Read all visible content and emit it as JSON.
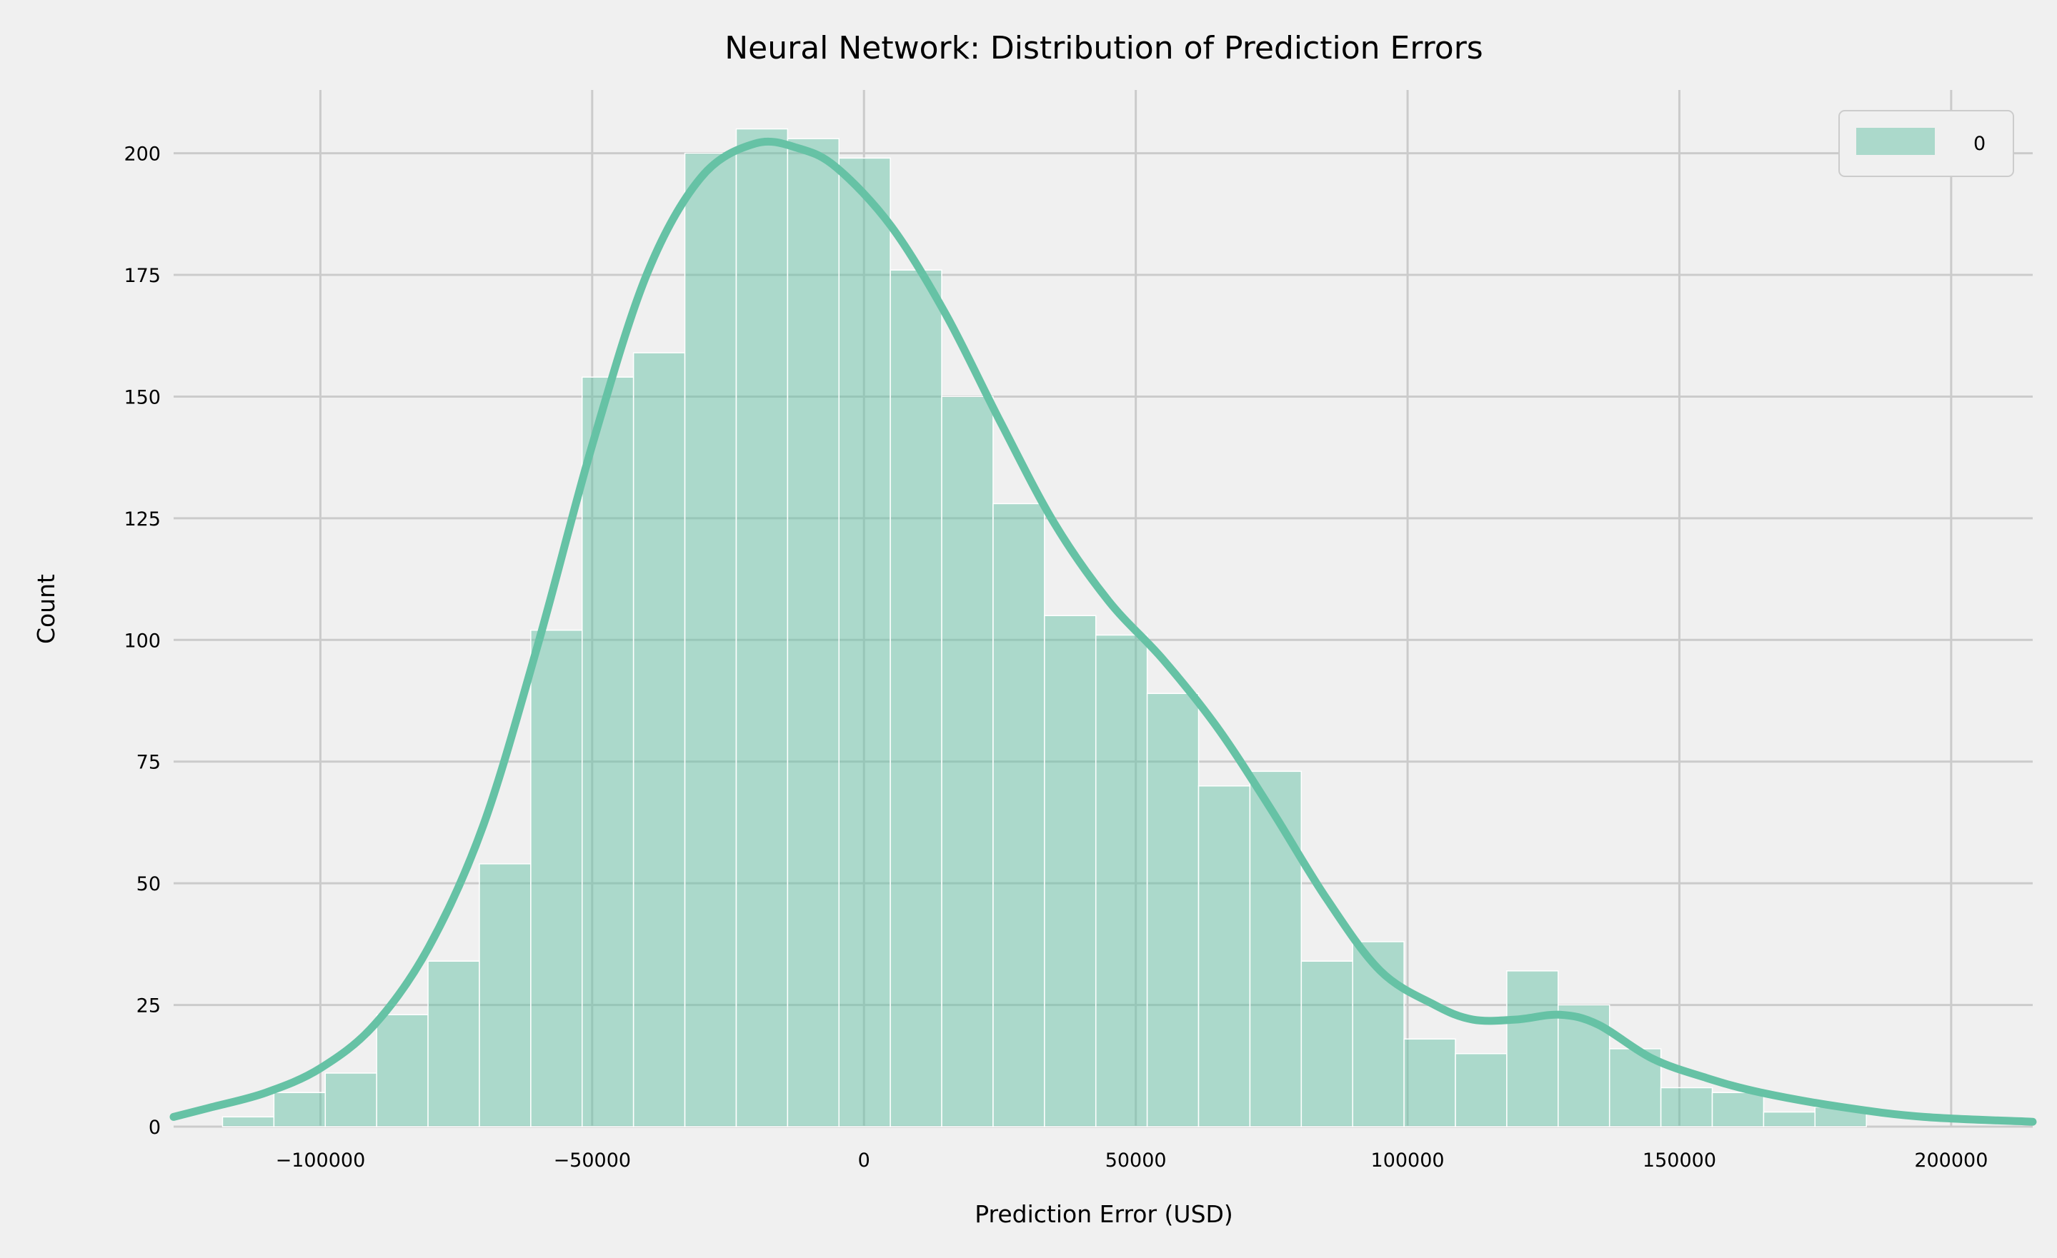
{
  "chart_data": {
    "type": "bar",
    "title": "Neural Network: Distribution of Prediction Errors",
    "xlabel": "Prediction Error (USD)",
    "ylabel": "Count",
    "xlim": [
      -127000,
      215000
    ],
    "ylim": [
      0,
      213
    ],
    "xticks": [
      -100000,
      -50000,
      0,
      50000,
      100000,
      150000,
      200000
    ],
    "xtick_labels": [
      "−100000",
      "−50000",
      "0",
      "50000",
      "100000",
      "150000",
      "200000"
    ],
    "yticks": [
      0,
      25,
      50,
      75,
      100,
      125,
      150,
      175,
      200
    ],
    "ytick_labels": [
      "0",
      "25",
      "50",
      "75",
      "100",
      "125",
      "150",
      "175",
      "200"
    ],
    "grid": true,
    "legend_position": "top-right",
    "legend_entries": [
      "0"
    ],
    "bin_start": -118000,
    "bin_width": 9450,
    "bar_values": [
      2,
      7,
      11,
      23,
      34,
      54,
      102,
      154,
      159,
      200,
      205,
      203,
      199,
      176,
      150,
      128,
      105,
      101,
      89,
      70,
      73,
      34,
      38,
      18,
      15,
      32,
      25,
      16,
      8,
      7,
      3,
      4
    ],
    "kde": {
      "x": [
        -127000,
        -120000,
        -110000,
        -100000,
        -90000,
        -80000,
        -70000,
        -60000,
        -50000,
        -40000,
        -30000,
        -20000,
        -12000,
        -5000,
        5000,
        15000,
        25000,
        35000,
        45000,
        55000,
        65000,
        75000,
        85000,
        95000,
        105000,
        112000,
        120000,
        128000,
        135000,
        145000,
        155000,
        165000,
        180000,
        195000,
        215000
      ],
      "y": [
        2,
        4,
        7,
        12,
        21,
        37,
        62,
        99,
        140,
        175,
        195,
        202,
        201,
        197,
        185,
        167,
        145,
        124,
        108,
        96,
        82,
        65,
        47,
        32,
        25,
        22,
        22,
        23,
        21,
        14,
        10,
        7,
        4,
        2,
        1
      ]
    },
    "colors": {
      "background": "#f0f0f0",
      "grid": "#cbcbcb",
      "bar_fill": "#66c2a5",
      "bar_edge": "#ffffff",
      "kde_line": "#66c2a5"
    }
  }
}
